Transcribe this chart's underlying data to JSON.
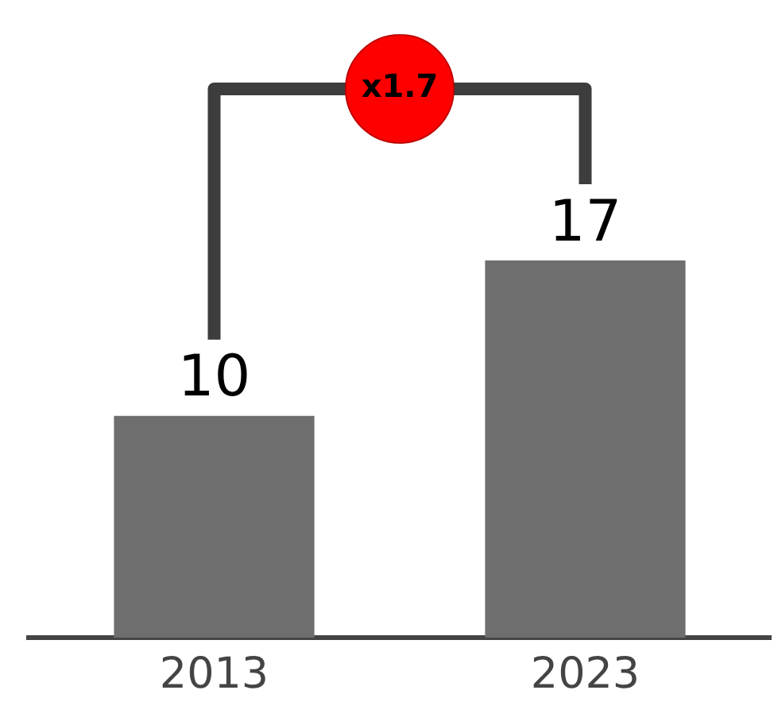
{
  "chart_data": {
    "type": "bar",
    "categories": [
      "2013",
      "2023"
    ],
    "values": [
      10,
      17
    ],
    "color": "#6e6e6e",
    "tick_labels": "x",
    "grid": false,
    "legend": false,
    "data_labels": true,
    "annotations": [
      "x1.7"
    ]
  }
}
